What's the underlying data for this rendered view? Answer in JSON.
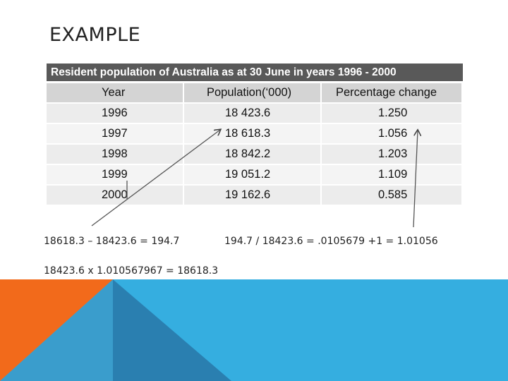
{
  "title": "EXAMPLE",
  "table": {
    "caption": "Resident population of Australia as at 30 June in years 1996 - 2000",
    "headers": [
      "Year",
      "Population(‘000)",
      "Percentage change"
    ],
    "rows": [
      {
        "year": "1996",
        "population": "18 423.6",
        "change": "1.250"
      },
      {
        "year": "1997",
        "population": "18 618.3",
        "change": "1.056"
      },
      {
        "year": "1998",
        "population": "18 842.2",
        "change": "1.203"
      },
      {
        "year": "1999",
        "population": "19 051.2",
        "change": "1.109"
      },
      {
        "year": "2000",
        "population": "19 162.6",
        "change": "0.585"
      }
    ]
  },
  "notes": {
    "difference": "18618.3 – 18423.6 = 194.7",
    "ratio": "194.7 / 18423.6 = .0105679 +1 = 1.01056",
    "product": "18423.6 x 1.010567967 = 18618.3"
  },
  "colors": {
    "caption_bg": "#595959",
    "header_bg": "#d4d4d4",
    "row_bg": "#ececec",
    "orange": "#f26a1b",
    "blue_light": "#35aee0",
    "blue_dark": "#2a7fb0",
    "blue_mid": "#3a9dcc"
  }
}
